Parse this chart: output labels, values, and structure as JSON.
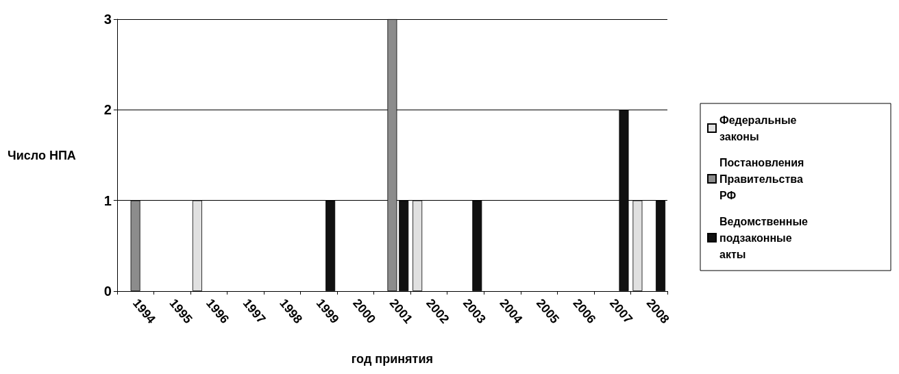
{
  "chart_data": {
    "type": "bar",
    "xlabel": "год принятия",
    "ylabel": "Число НПА",
    "categories": [
      "1994",
      "1995",
      "1996",
      "1997",
      "1998",
      "1999",
      "2000",
      "2001",
      "2002",
      "2003",
      "2004",
      "2005",
      "2006",
      "2007",
      "2008"
    ],
    "series": [
      {
        "name": "Федеральные законы",
        "color": "#e0e0e0",
        "values": [
          0,
          0,
          1,
          0,
          0,
          0,
          0,
          0,
          1,
          0,
          0,
          0,
          0,
          0,
          1
        ]
      },
      {
        "name": "Постановления Правительства РФ",
        "color": "#8c8c8c",
        "values": [
          1,
          0,
          0,
          0,
          0,
          0,
          0,
          3,
          0,
          0,
          0,
          0,
          0,
          0,
          0
        ]
      },
      {
        "name": "Ведомственные подзаконные акты",
        "color": "#111111",
        "values": [
          0,
          0,
          0,
          0,
          0,
          1,
          0,
          1,
          0,
          1,
          0,
          0,
          0,
          2,
          1
        ]
      }
    ],
    "ylim": [
      0,
      3
    ],
    "yticks": [
      0,
      1,
      2,
      3
    ],
    "grid": "y",
    "legend": "right"
  }
}
